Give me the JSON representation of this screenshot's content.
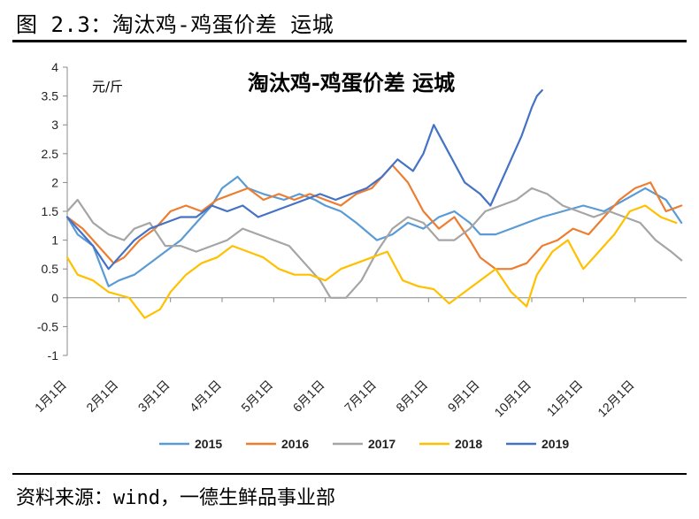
{
  "caption": "图 2.3：淘汰鸡-鸡蛋价差 运城",
  "source": "资料来源：wind，一德生鲜品事业部",
  "chart_data": {
    "type": "line",
    "title": "淘汰鸡-鸡蛋价差 运城",
    "ylabel": "元/斤",
    "ylim": [
      -1,
      4
    ],
    "yticks": [
      4,
      3.5,
      3,
      2.5,
      2,
      1.5,
      1,
      0.5,
      0,
      -0.5,
      -1
    ],
    "xlim": [
      1,
      13
    ],
    "xticks": [
      "1月1日",
      "2月1日",
      "3月1日",
      "4月1日",
      "5月1日",
      "6月1日",
      "7月1日",
      "8月1日",
      "9月1日",
      "10月1日",
      "11月1日",
      "12月1日"
    ],
    "legend_position": "bottom",
    "series": [
      {
        "name": "2015",
        "color": "#5b9bd5",
        "x": [
          1.0,
          1.2,
          1.5,
          1.8,
          2.0,
          2.3,
          2.6,
          2.9,
          3.2,
          3.5,
          3.8,
          4.0,
          4.3,
          4.5,
          4.8,
          5.2,
          5.5,
          5.8,
          6.0,
          6.3,
          6.6,
          7.0,
          7.3,
          7.6,
          7.9,
          8.2,
          8.5,
          8.8,
          9.0,
          9.3,
          9.6,
          9.9,
          10.2,
          10.6,
          11.0,
          11.4,
          11.8,
          12.2,
          12.6,
          12.9
        ],
        "y": [
          1.4,
          1.1,
          0.9,
          0.2,
          0.3,
          0.4,
          0.6,
          0.8,
          1.0,
          1.3,
          1.6,
          1.9,
          2.1,
          1.9,
          1.8,
          1.7,
          1.8,
          1.7,
          1.6,
          1.5,
          1.3,
          1.0,
          1.1,
          1.3,
          1.2,
          1.4,
          1.5,
          1.3,
          1.1,
          1.1,
          1.2,
          1.3,
          1.4,
          1.5,
          1.6,
          1.5,
          1.7,
          1.9,
          1.7,
          1.3
        ]
      },
      {
        "name": "2016",
        "color": "#ed7d31",
        "x": [
          1.0,
          1.3,
          1.6,
          1.9,
          2.1,
          2.4,
          2.7,
          3.0,
          3.3,
          3.6,
          3.9,
          4.2,
          4.5,
          4.8,
          5.1,
          5.4,
          5.7,
          6.0,
          6.3,
          6.6,
          6.9,
          7.1,
          7.3,
          7.6,
          7.9,
          8.2,
          8.5,
          8.8,
          9.0,
          9.3,
          9.6,
          9.9,
          10.2,
          10.5,
          10.8,
          11.1,
          11.4,
          11.7,
          12.0,
          12.3,
          12.6,
          12.9
        ],
        "y": [
          1.4,
          1.2,
          0.9,
          0.6,
          0.7,
          1.0,
          1.2,
          1.5,
          1.6,
          1.5,
          1.7,
          1.8,
          1.9,
          1.7,
          1.8,
          1.7,
          1.8,
          1.7,
          1.6,
          1.8,
          1.9,
          2.1,
          2.3,
          2.0,
          1.5,
          1.2,
          1.4,
          1.0,
          0.7,
          0.5,
          0.5,
          0.6,
          0.9,
          1.0,
          1.2,
          1.1,
          1.4,
          1.7,
          1.9,
          2.0,
          1.5,
          1.6
        ]
      },
      {
        "name": "2017",
        "color": "#a5a5a5",
        "x": [
          1.0,
          1.2,
          1.5,
          1.8,
          2.1,
          2.3,
          2.6,
          2.9,
          3.2,
          3.5,
          3.8,
          4.1,
          4.4,
          4.7,
          5.0,
          5.3,
          5.6,
          5.9,
          6.1,
          6.4,
          6.7,
          7.0,
          7.3,
          7.6,
          7.9,
          8.2,
          8.5,
          8.8,
          9.1,
          9.4,
          9.7,
          10.0,
          10.3,
          10.6,
          10.9,
          11.2,
          11.5,
          11.8,
          12.1,
          12.4,
          12.7,
          12.9
        ],
        "y": [
          1.5,
          1.7,
          1.3,
          1.1,
          1.0,
          1.2,
          1.3,
          0.9,
          0.9,
          0.8,
          0.9,
          1.0,
          1.2,
          1.1,
          1.0,
          0.9,
          0.6,
          0.3,
          0.0,
          0.0,
          0.3,
          0.8,
          1.2,
          1.4,
          1.3,
          1.0,
          1.0,
          1.2,
          1.5,
          1.6,
          1.7,
          1.9,
          1.8,
          1.6,
          1.5,
          1.4,
          1.5,
          1.4,
          1.3,
          1.0,
          0.8,
          0.65
        ]
      },
      {
        "name": "2018",
        "color": "#ffc000",
        "x": [
          1.0,
          1.2,
          1.5,
          1.8,
          2.0,
          2.2,
          2.5,
          2.8,
          3.0,
          3.3,
          3.6,
          3.9,
          4.2,
          4.5,
          4.8,
          5.1,
          5.4,
          5.7,
          6.0,
          6.3,
          6.6,
          6.9,
          7.2,
          7.5,
          7.8,
          8.1,
          8.4,
          8.7,
          9.0,
          9.3,
          9.6,
          9.9,
          10.1,
          10.4,
          10.7,
          11.0,
          11.3,
          11.6,
          11.9,
          12.2,
          12.5,
          12.8
        ],
        "y": [
          0.7,
          0.4,
          0.3,
          0.1,
          0.05,
          0.0,
          -0.35,
          -0.2,
          0.1,
          0.4,
          0.6,
          0.7,
          0.9,
          0.8,
          0.7,
          0.5,
          0.4,
          0.4,
          0.3,
          0.5,
          0.6,
          0.7,
          0.8,
          0.3,
          0.2,
          0.15,
          -0.1,
          0.1,
          0.3,
          0.5,
          0.1,
          -0.15,
          0.4,
          0.8,
          1.0,
          0.5,
          0.8,
          1.1,
          1.5,
          1.6,
          1.4,
          1.3
        ]
      },
      {
        "name": "2019",
        "color": "#4472c4",
        "x": [
          1.0,
          1.2,
          1.5,
          1.8,
          2.0,
          2.3,
          2.6,
          2.9,
          3.2,
          3.5,
          3.8,
          4.1,
          4.4,
          4.7,
          5.0,
          5.3,
          5.6,
          5.9,
          6.2,
          6.5,
          6.8,
          7.1,
          7.4,
          7.7,
          7.9,
          8.1,
          8.4,
          8.7,
          9.0,
          9.2,
          9.5,
          9.8,
          10.0,
          10.1,
          10.2
        ],
        "y": [
          1.4,
          1.2,
          0.9,
          0.5,
          0.7,
          1.0,
          1.2,
          1.3,
          1.4,
          1.4,
          1.6,
          1.5,
          1.6,
          1.4,
          1.5,
          1.6,
          1.7,
          1.8,
          1.7,
          1.8,
          1.9,
          2.1,
          2.4,
          2.2,
          2.5,
          3.0,
          2.5,
          2.0,
          1.8,
          1.6,
          2.2,
          2.8,
          3.3,
          3.5,
          3.6
        ]
      }
    ]
  }
}
